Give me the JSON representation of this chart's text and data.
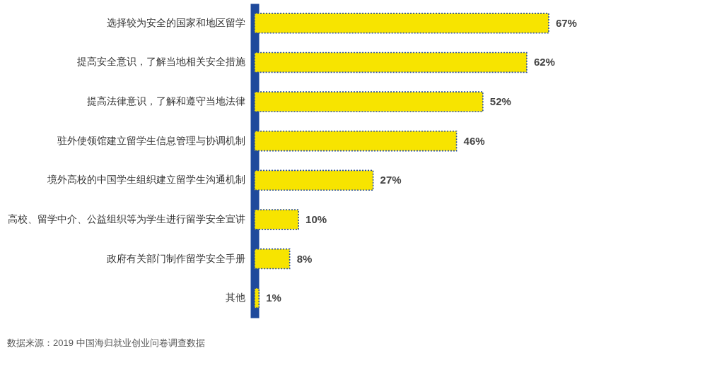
{
  "chart_data": {
    "type": "bar",
    "orientation": "horizontal",
    "categories": [
      "选择较为安全的国家和地区留学",
      "提高安全意识，了解当地相关安全措施",
      "提高法律意识，了解和遵守当地法律",
      "驻外使领馆建立留学生信息管理与协调机制",
      "境外高校的中国学生组织建立留学生沟通机制",
      "高校、留学中介、公益组织等为学生进行留学安全宣讲",
      "政府有关部门制作留学安全手册",
      "其他"
    ],
    "values": [
      67,
      62,
      52,
      46,
      27,
      10,
      8,
      1
    ],
    "value_labels": [
      "67%",
      "62%",
      "52%",
      "46%",
      "27%",
      "10%",
      "8%",
      "1%"
    ],
    "color": "#f7e400",
    "annotations": [
      "数据来源：2019 中国海归就业创业问卷调查数据"
    ]
  }
}
